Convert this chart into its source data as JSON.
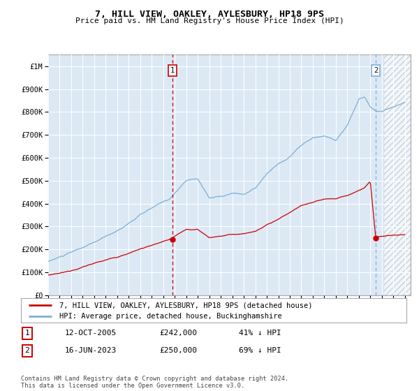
{
  "title": "7, HILL VIEW, OAKLEY, AYLESBURY, HP18 9PS",
  "subtitle": "Price paid vs. HM Land Registry's House Price Index (HPI)",
  "ylim": [
    0,
    1050000
  ],
  "xlim_start": 1995.0,
  "xlim_end": 2026.5,
  "background_color": "#dce9f5",
  "grid_color": "#ffffff",
  "hpi_color": "#7eaed4",
  "price_color": "#cc0000",
  "sale1_year": 2005.79,
  "sale1_price": 242000,
  "sale1_label": "1",
  "sale1_date": "12-OCT-2005",
  "sale1_pct": "41% ↓ HPI",
  "sale2_year": 2023.46,
  "sale2_price": 250000,
  "sale2_label": "2",
  "sale2_date": "16-JUN-2023",
  "sale2_pct": "69% ↓ HPI",
  "legend_label1": "7, HILL VIEW, OAKLEY, AYLESBURY, HP18 9PS (detached house)",
  "legend_label2": "HPI: Average price, detached house, Buckinghamshire",
  "footer": "Contains HM Land Registry data © Crown copyright and database right 2024.\nThis data is licensed under the Open Government Licence v3.0.",
  "yticks": [
    0,
    100000,
    200000,
    300000,
    400000,
    500000,
    600000,
    700000,
    800000,
    900000,
    1000000
  ],
  "ytick_labels": [
    "£0",
    "£100K",
    "£200K",
    "£300K",
    "£400K",
    "£500K",
    "£600K",
    "£700K",
    "£800K",
    "£900K",
    "£1M"
  ],
  "xticks": [
    1995,
    1996,
    1997,
    1998,
    1999,
    2000,
    2001,
    2002,
    2003,
    2004,
    2005,
    2006,
    2007,
    2008,
    2009,
    2010,
    2011,
    2012,
    2013,
    2014,
    2015,
    2016,
    2017,
    2018,
    2019,
    2020,
    2021,
    2022,
    2023,
    2024,
    2025,
    2026
  ],
  "hatch_start": 2024.2,
  "sale1_vline_color": "#cc0000",
  "sale2_vline_color": "#7eaed4"
}
